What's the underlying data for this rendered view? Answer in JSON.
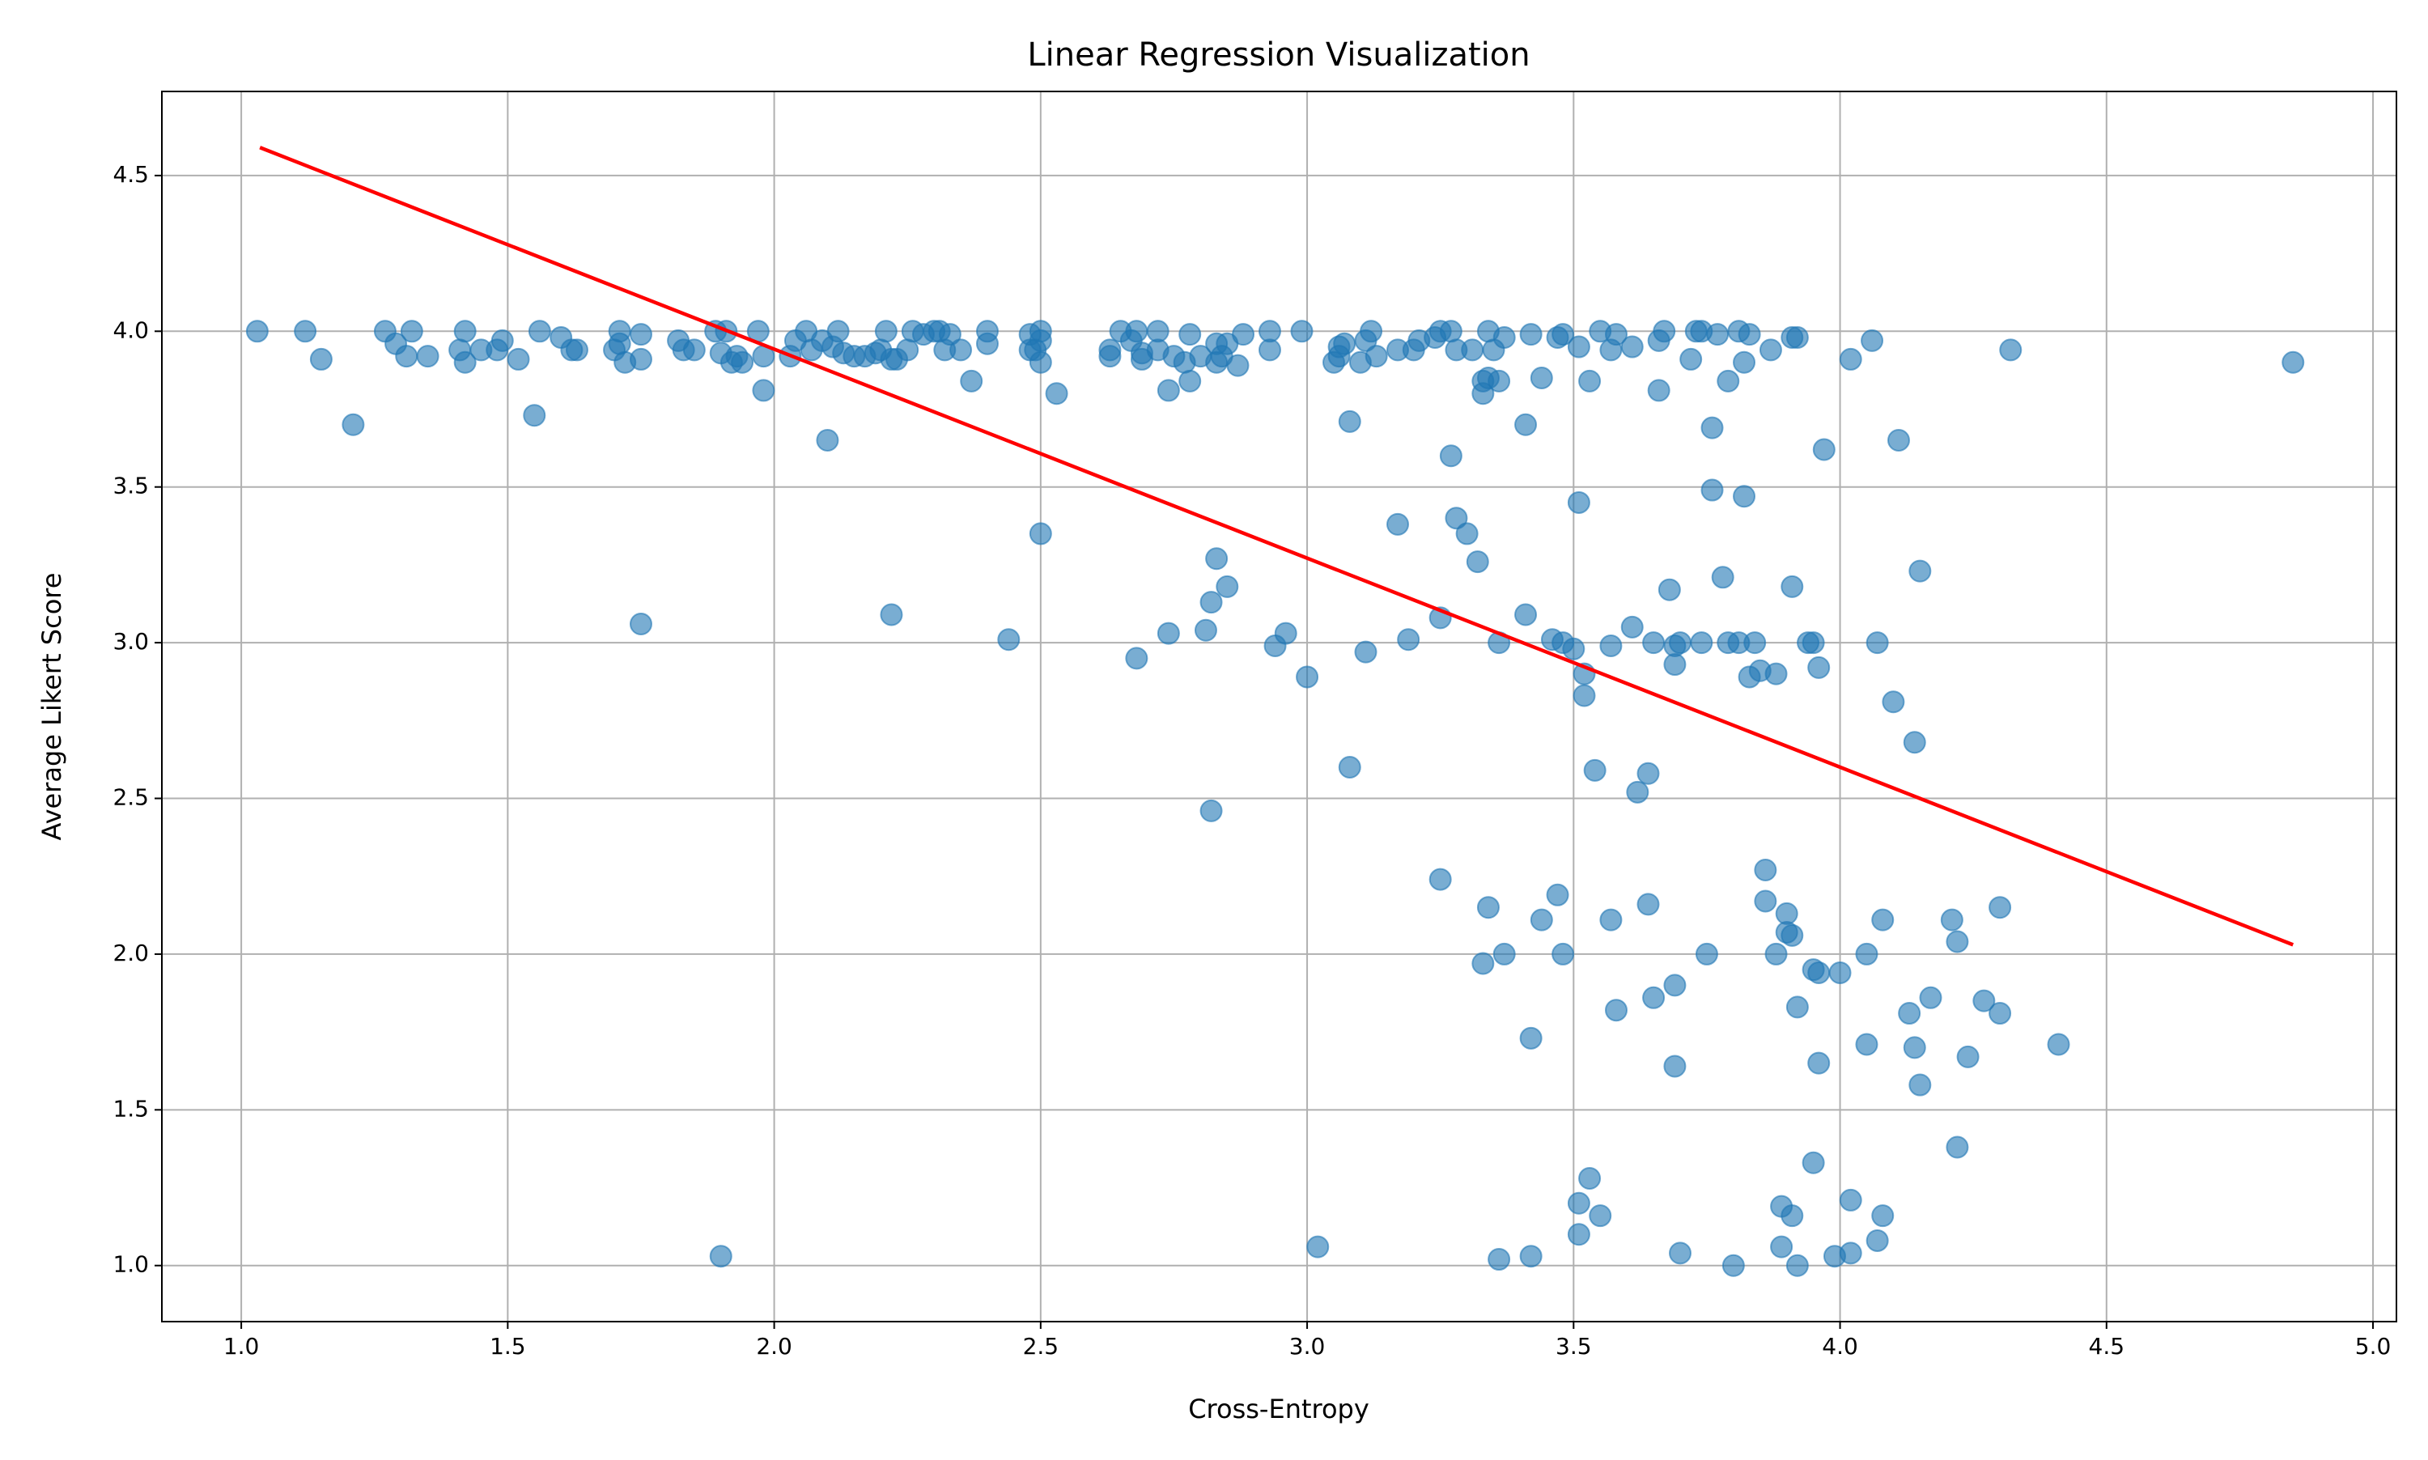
{
  "chart_data": {
    "type": "scatter",
    "title": "Linear Regression Visualization",
    "x_label": "Cross-Entropy",
    "y_label": "Average Likert Score",
    "xlim": [
      0.851,
      5.044
    ],
    "ylim": [
      0.82,
      4.77
    ],
    "xticks": [
      {
        "value": 1,
        "label": "1.0"
      },
      {
        "value": 1.5,
        "label": "1.5"
      },
      {
        "value": 2,
        "label": "2.0"
      },
      {
        "value": 2.5,
        "label": "2.5"
      },
      {
        "value": 3,
        "label": "3.0"
      },
      {
        "value": 3.5,
        "label": "3.5"
      },
      {
        "value": 4,
        "label": "4.0"
      },
      {
        "value": 4.5,
        "label": "4.5"
      },
      {
        "value": 5,
        "label": "5.0"
      }
    ],
    "yticks": [
      {
        "value": 1,
        "label": "1.0"
      },
      {
        "value": 1.5,
        "label": "1.5"
      },
      {
        "value": 2,
        "label": "2.0"
      },
      {
        "value": 2.5,
        "label": "2.5"
      },
      {
        "value": 3,
        "label": "3.0"
      },
      {
        "value": 3.5,
        "label": "3.5"
      },
      {
        "value": 4,
        "label": "4.0"
      },
      {
        "value": 4.5,
        "label": "4.5"
      }
    ],
    "grid": true,
    "series": [
      {
        "color": "#1f77b4",
        "x": [
          1.03,
          1.12,
          1.15,
          1.21,
          1.27,
          1.29,
          1.31,
          1.32,
          1.35,
          1.41,
          1.42,
          1.42,
          1.45,
          1.48,
          1.49,
          1.52,
          1.55,
          1.56,
          1.6,
          1.62,
          1.63,
          1.7,
          1.71,
          1.71,
          1.72,
          1.75,
          1.75,
          1.75,
          1.82,
          1.83,
          1.85,
          1.89,
          1.9,
          1.91,
          1.92,
          1.93,
          1.94,
          1.97,
          1.98,
          1.98,
          2.03,
          2.04,
          2.06,
          2.07,
          2.09,
          2.1,
          2.11,
          2.12,
          2.13,
          2.15,
          2.17,
          2.19,
          2.2,
          2.21,
          2.22,
          2.22,
          2.23,
          2.25,
          2.26,
          2.28,
          2.3,
          2.31,
          2.32,
          2.33,
          2.35,
          2.37,
          2.4,
          2.4,
          2.44,
          2.48,
          2.48,
          2.49,
          2.5,
          2.5,
          2.5,
          2.5,
          2.53,
          2.63,
          2.63,
          2.65,
          2.67,
          2.68,
          2.68,
          2.69,
          2.69,
          2.72,
          2.72,
          2.74,
          2.74,
          2.75,
          2.77,
          2.78,
          2.78,
          2.8,
          2.81,
          2.82,
          2.82,
          2.83,
          2.83,
          2.83,
          2.84,
          2.85,
          2.85,
          2.87,
          2.88,
          2.93,
          2.93,
          2.94,
          2.96,
          2.99,
          3.0,
          3.02,
          3.05,
          3.06,
          3.06,
          3.07,
          3.08,
          3.08,
          3.1,
          3.11,
          3.11,
          3.12,
          3.13,
          3.17,
          3.17,
          3.19,
          3.2,
          3.21,
          3.24,
          3.25,
          3.25,
          3.25,
          3.27,
          3.27,
          3.28,
          3.28,
          3.3,
          3.31,
          3.32,
          3.33,
          3.33,
          3.33,
          3.34,
          3.34,
          3.34,
          3.35,
          3.36,
          3.36,
          3.36,
          3.37,
          3.37,
          3.41,
          3.41,
          3.42,
          3.42,
          3.42,
          3.44,
          3.44,
          3.46,
          3.47,
          3.47,
          3.48,
          3.48,
          3.48,
          3.5,
          3.51,
          3.51,
          3.51,
          3.51,
          3.52,
          3.52,
          3.53,
          3.53,
          3.54,
          3.55,
          3.55,
          3.57,
          3.57,
          3.57,
          3.58,
          3.58,
          3.61,
          3.61,
          3.62,
          3.64,
          3.64,
          3.65,
          3.65,
          3.66,
          3.66,
          3.67,
          3.68,
          3.69,
          3.69,
          3.69,
          3.69,
          3.7,
          3.7,
          3.72,
          3.73,
          3.74,
          3.74,
          3.75,
          3.76,
          3.76,
          3.77,
          3.78,
          3.79,
          3.79,
          3.8,
          3.81,
          3.81,
          3.82,
          3.82,
          3.83,
          3.83,
          3.84,
          3.85,
          3.86,
          3.86,
          3.87,
          3.88,
          3.88,
          3.89,
          3.89,
          3.9,
          3.9,
          3.91,
          3.91,
          3.91,
          3.91,
          3.92,
          3.92,
          3.92,
          3.94,
          3.95,
          3.95,
          3.95,
          3.96,
          3.96,
          3.96,
          3.97,
          3.99,
          4.0,
          4.02,
          4.02,
          4.02,
          4.05,
          4.05,
          4.06,
          4.07,
          4.07,
          4.08,
          4.08,
          4.1,
          4.11,
          4.13,
          4.14,
          4.14,
          4.15,
          4.15,
          4.17,
          4.21,
          4.22,
          4.22,
          4.24,
          4.27,
          4.3,
          4.3,
          4.32,
          4.41,
          4.85,
          1.9
        ],
        "values": [
          4.0,
          4.0,
          3.91,
          3.7,
          4.0,
          3.96,
          3.92,
          4.0,
          3.92,
          3.94,
          4.0,
          3.9,
          3.94,
          3.94,
          3.97,
          3.91,
          3.73,
          4.0,
          3.98,
          3.94,
          3.94,
          3.94,
          4.0,
          3.96,
          3.9,
          3.99,
          3.91,
          3.06,
          3.97,
          3.94,
          3.94,
          4.0,
          3.93,
          4.0,
          3.9,
          3.92,
          3.9,
          4.0,
          3.92,
          3.81,
          3.92,
          3.97,
          4.0,
          3.94,
          3.97,
          3.65,
          3.95,
          4.0,
          3.93,
          3.92,
          3.92,
          3.93,
          3.94,
          4.0,
          3.09,
          3.91,
          3.91,
          3.94,
          4.0,
          3.99,
          4.0,
          4.0,
          3.94,
          3.99,
          3.94,
          3.84,
          3.96,
          4.0,
          3.01,
          3.99,
          3.94,
          3.94,
          4.0,
          3.97,
          3.9,
          3.35,
          3.8,
          3.92,
          3.94,
          4.0,
          3.97,
          4.0,
          2.95,
          3.91,
          3.93,
          3.94,
          4.0,
          3.81,
          3.03,
          3.92,
          3.9,
          3.84,
          3.99,
          3.92,
          3.04,
          3.13,
          2.46,
          3.27,
          3.9,
          3.96,
          3.92,
          3.18,
          3.96,
          3.89,
          3.99,
          3.94,
          4.0,
          2.99,
          3.03,
          4.0,
          2.89,
          1.06,
          3.9,
          3.92,
          3.95,
          3.96,
          3.71,
          2.6,
          3.9,
          3.97,
          2.97,
          4.0,
          3.92,
          3.94,
          3.38,
          3.01,
          3.94,
          3.97,
          3.98,
          4.0,
          3.08,
          2.24,
          4.0,
          3.6,
          3.4,
          3.94,
          3.35,
          3.94,
          3.26,
          3.84,
          3.8,
          1.97,
          4.0,
          3.85,
          2.15,
          3.94,
          3.0,
          3.84,
          1.02,
          3.98,
          2.0,
          3.09,
          3.7,
          3.99,
          1.73,
          1.03,
          3.85,
          2.11,
          3.01,
          3.98,
          2.19,
          3.99,
          3.0,
          2.0,
          2.98,
          3.95,
          3.45,
          1.2,
          1.1,
          2.9,
          2.83,
          1.28,
          3.84,
          2.59,
          4.0,
          1.16,
          3.94,
          2.99,
          2.11,
          3.99,
          1.82,
          3.05,
          3.95,
          2.52,
          2.58,
          2.16,
          3.0,
          1.86,
          3.97,
          3.81,
          4.0,
          3.17,
          2.93,
          2.99,
          1.9,
          1.64,
          3.0,
          1.04,
          3.91,
          4.0,
          3.0,
          4.0,
          2.0,
          3.69,
          3.49,
          3.99,
          3.21,
          3.84,
          3.0,
          1.0,
          4.0,
          3.0,
          3.47,
          3.9,
          2.89,
          3.99,
          3.0,
          2.91,
          2.27,
          2.17,
          3.94,
          2.9,
          2.0,
          1.19,
          1.06,
          2.13,
          2.07,
          3.18,
          2.06,
          1.16,
          3.98,
          1.0,
          3.98,
          1.83,
          3.0,
          3.0,
          1.95,
          1.33,
          2.92,
          1.94,
          1.65,
          3.62,
          1.03,
          1.94,
          3.91,
          1.04,
          1.21,
          2.0,
          1.71,
          3.97,
          3.0,
          1.08,
          2.11,
          1.16,
          2.81,
          3.65,
          1.81,
          2.68,
          1.7,
          3.23,
          1.58,
          1.86,
          2.11,
          2.04,
          1.38,
          1.67,
          1.85,
          2.15,
          1.81,
          3.94,
          1.71,
          3.9,
          1.03
        ]
      },
      {
        "type": "line",
        "color": "#ff0000",
        "x": [
          1.035,
          4.85
        ],
        "values": [
          4.59,
          2.03
        ]
      }
    ]
  }
}
